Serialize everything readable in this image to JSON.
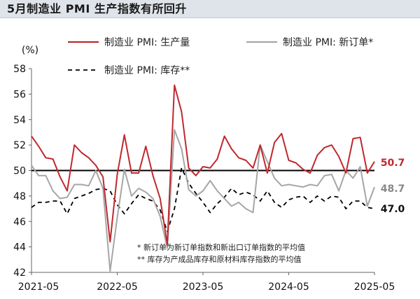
{
  "page": {
    "title": "5月制造业 PMI 生产指数有所回升"
  },
  "chart_data": {
    "type": "line",
    "title": "5月制造业 PMI 生产指数有所回升",
    "ylabel": "(%)",
    "ylim": [
      42,
      58
    ],
    "yticks": [
      42,
      44,
      46,
      48,
      50,
      52,
      54,
      56,
      58
    ],
    "x_start": "2021-05",
    "x_end": "2025-05",
    "xticks": [
      "2021-05",
      "2022-05",
      "2023-05",
      "2024-05",
      "2025-05"
    ],
    "reference_line": 50,
    "grid": false,
    "legend_position": "top",
    "series": [
      {
        "name": "制造业 PMI: 生产量",
        "color": "#c0282d",
        "dash": "solid",
        "end_label": "50.7",
        "values": [
          52.7,
          51.9,
          51.0,
          50.9,
          49.5,
          48.4,
          52.0,
          51.4,
          51.0,
          50.4,
          49.5,
          44.4,
          49.7,
          52.8,
          49.8,
          49.8,
          51.9,
          49.6,
          47.8,
          44.2,
          56.7,
          54.6,
          50.2,
          49.6,
          50.3,
          50.2,
          50.9,
          52.7,
          51.7,
          51.0,
          50.8,
          50.2,
          52.0,
          49.8,
          52.2,
          52.9,
          50.8,
          50.6,
          50.1,
          49.8,
          51.2,
          51.8,
          52.0,
          51.1,
          49.8,
          52.5,
          52.6,
          49.8,
          50.7
        ]
      },
      {
        "name": "制造业 PMI: 新订单*",
        "color": "#a6a6a6",
        "dash": "solid",
        "end_label": "48.7",
        "values": [
          50.4,
          49.6,
          49.6,
          48.4,
          47.8,
          47.9,
          48.9,
          48.9,
          48.8,
          50.0,
          48.6,
          42.1,
          46.3,
          50.1,
          48.0,
          48.6,
          48.3,
          47.8,
          46.4,
          43.9,
          53.2,
          51.7,
          48.5,
          48.0,
          48.4,
          49.2,
          48.4,
          47.8,
          47.2,
          47.5,
          47.0,
          46.7,
          52.0,
          50.7,
          49.4,
          48.8,
          48.9,
          48.8,
          48.7,
          48.9,
          48.8,
          49.6,
          49.7,
          48.4,
          50.0,
          49.4,
          50.3,
          47.2,
          48.7
        ]
      },
      {
        "name": "制造业 PMI: 库存**",
        "color": "#000000",
        "dash": "dashed",
        "end_label": "47.0",
        "values": [
          47.1,
          47.5,
          47.5,
          47.6,
          47.6,
          46.6,
          47.8,
          48.0,
          48.2,
          48.5,
          48.6,
          48.4,
          47.3,
          46.6,
          47.4,
          48.1,
          47.8,
          47.6,
          46.9,
          45.2,
          47.0,
          50.2,
          49.0,
          48.2,
          47.5,
          46.7,
          47.4,
          47.9,
          48.6,
          48.1,
          48.3,
          48.1,
          47.6,
          48.4,
          47.5,
          47.1,
          47.7,
          47.9,
          48.0,
          47.5,
          48.0,
          47.6,
          48.0,
          47.9,
          47.0,
          47.6,
          47.6,
          47.1,
          47.0
        ]
      }
    ],
    "notes": [
      "* 新订单为新订单指数和新出口订单指数的平均值",
      "** 库存为产成品库存和原材料库存指数的平均值"
    ]
  }
}
